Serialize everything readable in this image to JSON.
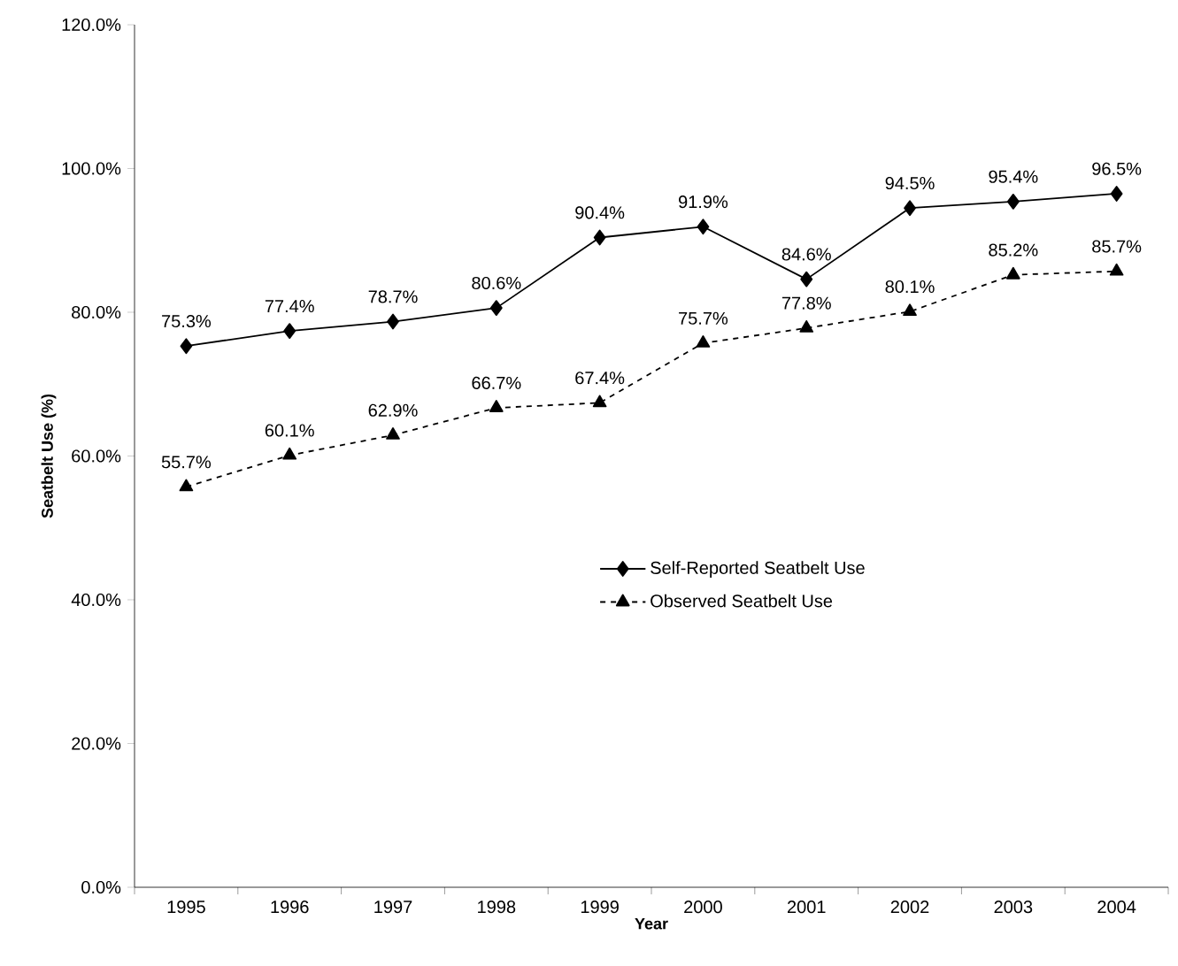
{
  "chart_data": {
    "type": "line",
    "xlabel": "Year",
    "ylabel": "Seatbelt Use (%)",
    "categories": [
      "1995",
      "1996",
      "1997",
      "1998",
      "1999",
      "2000",
      "2001",
      "2002",
      "2003",
      "2004"
    ],
    "series": [
      {
        "name": "Self-Reported Seatbelt Use",
        "color": "#000000",
        "marker": "diamond",
        "line_style": "solid",
        "values": [
          75.3,
          77.4,
          78.7,
          80.6,
          90.4,
          91.9,
          84.6,
          94.5,
          95.4,
          96.5
        ],
        "value_labels": [
          "75.3%",
          "77.4%",
          "78.7%",
          "80.6%",
          "90.4%",
          "91.9%",
          "84.6%",
          "94.5%",
          "95.4%",
          "96.5%"
        ]
      },
      {
        "name": "Observed Seatbelt Use",
        "color": "#000000",
        "marker": "triangle",
        "line_style": "dashed",
        "values": [
          55.7,
          60.1,
          62.9,
          66.7,
          67.4,
          75.7,
          77.8,
          80.1,
          85.2,
          85.7
        ],
        "value_labels": [
          "55.7%",
          "60.1%",
          "62.9%",
          "66.7%",
          "67.4%",
          "75.7%",
          "77.8%",
          "80.1%",
          "85.2%",
          "85.7%"
        ]
      }
    ],
    "ylim": [
      0,
      120
    ],
    "yticks": [
      {
        "value": 0,
        "label": "0.0%"
      },
      {
        "value": 20,
        "label": "20.0%"
      },
      {
        "value": 40,
        "label": "40.0%"
      },
      {
        "value": 60,
        "label": "60.0%"
      },
      {
        "value": 80,
        "label": "80.0%"
      },
      {
        "value": 100,
        "label": "100.0%"
      },
      {
        "value": 120,
        "label": "120.0%"
      }
    ],
    "grid": false,
    "legend": "center"
  }
}
